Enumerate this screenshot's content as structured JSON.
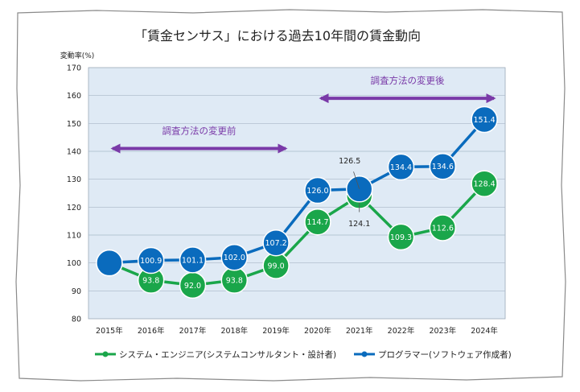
{
  "chart_data": {
    "type": "line",
    "title": "「賃金センサス」における過去10年間の賃金動向",
    "ylabel": "変動率(%)",
    "xlabel": "",
    "ylim": [
      80,
      170
    ],
    "yticks": [
      80,
      90,
      100,
      110,
      120,
      130,
      140,
      150,
      160,
      170
    ],
    "grid": true,
    "categories": [
      "2015年",
      "2016年",
      "2017年",
      "2018年",
      "2019年",
      "2020年",
      "2021年",
      "2022年",
      "2023年",
      "2024年"
    ],
    "series": [
      {
        "name": "システム・エンジニア(システムコンサルタント・設計者)",
        "color": "#1aa64a",
        "values": [
          100,
          93.8,
          92.0,
          93.8,
          99.0,
          114.7,
          124.1,
          109.3,
          112.6,
          128.4
        ],
        "labels": [
          "",
          "93.8",
          "92.0",
          "93.8",
          "99.0",
          "114.7",
          "124.1",
          "109.3",
          "112.6",
          "128.4"
        ]
      },
      {
        "name": "プログラマー(ソフトウェア作成者)",
        "color": "#0a6bbd",
        "values": [
          100,
          100.9,
          101.1,
          102.0,
          107.2,
          126.0,
          126.5,
          134.4,
          134.6,
          151.4
        ],
        "labels": [
          "",
          "100.9",
          "101.1",
          "102.0",
          "107.2",
          "126.0",
          "126.5",
          "134.4",
          "134.6",
          "151.4"
        ]
      }
    ],
    "annotations": [
      {
        "text": "調査方法の変更前",
        "from": 0,
        "to": 4,
        "y": 141,
        "color": "#7a3aa8"
      },
      {
        "text": "調査方法の変更後",
        "from": 5,
        "to": 9,
        "y": 159,
        "color": "#7a3aa8"
      }
    ]
  }
}
